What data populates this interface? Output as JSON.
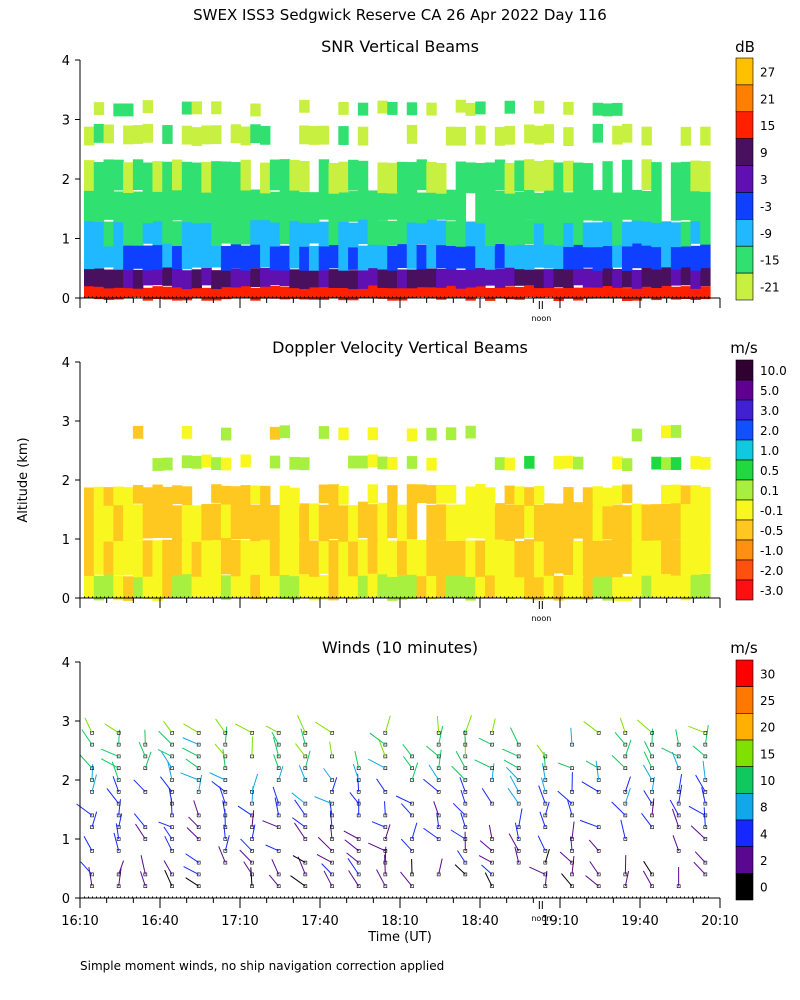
{
  "figure_title": "SWEX ISS3 Sedgwick Reserve CA  26 Apr 2022 Day 116",
  "shared_ylabel": "Altitude (km)",
  "shared_xlabel": "Time (UT)",
  "footnote": "Simple moment winds, no ship navigation correction applied",
  "noon_label": "noon",
  "chart_data": [
    {
      "type": "heatmap",
      "title": "SNR Vertical Beams",
      "unit": "dB",
      "xlim": [
        "16:10",
        "20:10"
      ],
      "ylim": [
        0,
        4
      ],
      "y_ticks": [
        0,
        1,
        2,
        3,
        4
      ],
      "colorbar": {
        "labels": [
          "27",
          "21",
          "15",
          "9",
          "3",
          "-3",
          "-9",
          "-15",
          "-21"
        ],
        "colors": [
          "#ffc000",
          "#ff8000",
          "#ff2000",
          "#4a1060",
          "#6010b0",
          "#1040ff",
          "#20b8ff",
          "#30e070",
          "#c8f040"
        ]
      },
      "layers": [
        {
          "range_km": [
            0.0,
            0.2
          ],
          "snr_db": 15
        },
        {
          "range_km": [
            0.2,
            0.5
          ],
          "snr_db": 6
        },
        {
          "range_km": [
            0.5,
            0.9
          ],
          "snr_db": -6
        },
        {
          "range_km": [
            0.9,
            1.3
          ],
          "snr_db": -12
        },
        {
          "range_km": [
            1.3,
            1.8
          ],
          "snr_db": -15
        },
        {
          "range_km": [
            1.8,
            2.3
          ],
          "snr_db": -18
        },
        {
          "range_km": [
            2.6,
            2.9
          ],
          "snr_db": -20
        },
        {
          "range_km": [
            3.1,
            3.3
          ],
          "snr_db": -19
        }
      ]
    },
    {
      "type": "heatmap",
      "title": "Doppler Velocity Vertical Beams",
      "unit": "m/s",
      "xlim": [
        "16:10",
        "20:10"
      ],
      "ylim": [
        0,
        4
      ],
      "y_ticks": [
        0,
        1,
        2,
        3,
        4
      ],
      "colorbar": {
        "labels": [
          "10.0",
          "5.0",
          "3.0",
          "2.0",
          "1.0",
          "0.5",
          "0.1",
          "-0.1",
          "-0.5",
          "-1.0",
          "-2.0",
          "-3.0"
        ],
        "colors": [
          "#300030",
          "#600090",
          "#4020d0",
          "#1050ff",
          "#10c8e0",
          "#20d840",
          "#a8f040",
          "#f8f820",
          "#ffc820",
          "#ff9010",
          "#ff5010",
          "#ff1010"
        ]
      },
      "layers": [
        {
          "range_km": [
            0.0,
            0.4
          ],
          "velocity_ms": -0.1
        },
        {
          "range_km": [
            0.4,
            1.0
          ],
          "velocity_ms": -0.3
        },
        {
          "range_km": [
            1.0,
            1.6
          ],
          "velocity_ms": -0.4
        },
        {
          "range_km": [
            1.6,
            1.9
          ],
          "velocity_ms": -0.3
        },
        {
          "range_km": [
            2.2,
            2.4
          ],
          "velocity_ms": 0.1
        },
        {
          "range_km": [
            2.7,
            2.9
          ],
          "velocity_ms": -0.1
        }
      ]
    },
    {
      "type": "scatter",
      "title": "Winds (10 minutes)",
      "unit": "m/s",
      "xlim": [
        "16:10",
        "20:10"
      ],
      "ylim": [
        0,
        4
      ],
      "y_ticks": [
        0,
        1,
        2,
        3,
        4
      ],
      "x_ticks": [
        "16:10",
        "16:40",
        "17:10",
        "17:40",
        "18:10",
        "18:40",
        "19:10",
        "19:40",
        "20:10"
      ],
      "colorbar": {
        "labels": [
          "30",
          "25",
          "20",
          "15",
          "10",
          "8",
          "4",
          "2",
          "0"
        ],
        "colors": [
          "#ff0000",
          "#ff7800",
          "#ffb000",
          "#80e000",
          "#10c860",
          "#10a8e8",
          "#1428ff",
          "#5a0890",
          "#000000"
        ]
      },
      "profile_times": [
        "16:10",
        "16:20",
        "16:30",
        "16:40",
        "16:50",
        "17:00",
        "17:10",
        "17:20",
        "17:30",
        "17:40",
        "17:50",
        "18:00",
        "18:10",
        "18:20",
        "18:30",
        "18:40",
        "18:50",
        "19:00",
        "19:10",
        "19:20",
        "19:30",
        "19:40",
        "19:50",
        "20:00"
      ],
      "levels_km": [
        0.2,
        0.4,
        0.6,
        0.8,
        1.0,
        1.2,
        1.4,
        1.6,
        1.8,
        2.0,
        2.2,
        2.4,
        2.6,
        2.8
      ],
      "speed_by_level_ms": [
        1,
        2,
        2,
        3,
        3,
        4,
        4,
        5,
        6,
        8,
        10,
        12,
        10,
        14
      ]
    }
  ]
}
